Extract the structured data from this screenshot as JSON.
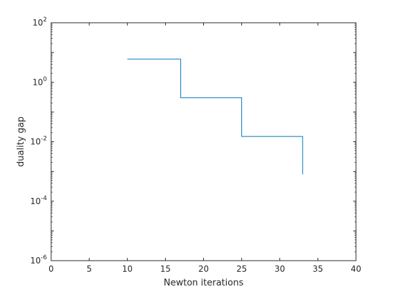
{
  "chart_data": {
    "type": "line",
    "xlabel": "Newton iterations",
    "ylabel": "duality gap",
    "xlim": [
      0,
      40
    ],
    "ylim": [
      1e-06,
      100
    ],
    "y_scale": "log",
    "grid": false,
    "box": true,
    "x_ticks": [
      {
        "value": 0,
        "label": "0"
      },
      {
        "value": 5,
        "label": "5"
      },
      {
        "value": 10,
        "label": "10"
      },
      {
        "value": 15,
        "label": "15"
      },
      {
        "value": 20,
        "label": "20"
      },
      {
        "value": 25,
        "label": "25"
      },
      {
        "value": 30,
        "label": "30"
      },
      {
        "value": 35,
        "label": "35"
      },
      {
        "value": 40,
        "label": "40"
      }
    ],
    "y_ticks": [
      {
        "value": 1e-06,
        "base": "10",
        "exp": "-6"
      },
      {
        "value": 0.0001,
        "base": "10",
        "exp": "-4"
      },
      {
        "value": 0.01,
        "base": "10",
        "exp": "-2"
      },
      {
        "value": 1,
        "base": "10",
        "exp": "0"
      },
      {
        "value": 100,
        "base": "10",
        "exp": "2"
      }
    ],
    "series": [
      {
        "color": "#0072bd",
        "style": "stairs",
        "points": [
          {
            "x": 10,
            "y": 6
          },
          {
            "x": 17,
            "y": 6
          },
          {
            "x": 17,
            "y": 0.3
          },
          {
            "x": 25,
            "y": 0.3
          },
          {
            "x": 25,
            "y": 0.015
          },
          {
            "x": 33,
            "y": 0.015
          },
          {
            "x": 33,
            "y": 0.0008
          }
        ]
      }
    ]
  }
}
